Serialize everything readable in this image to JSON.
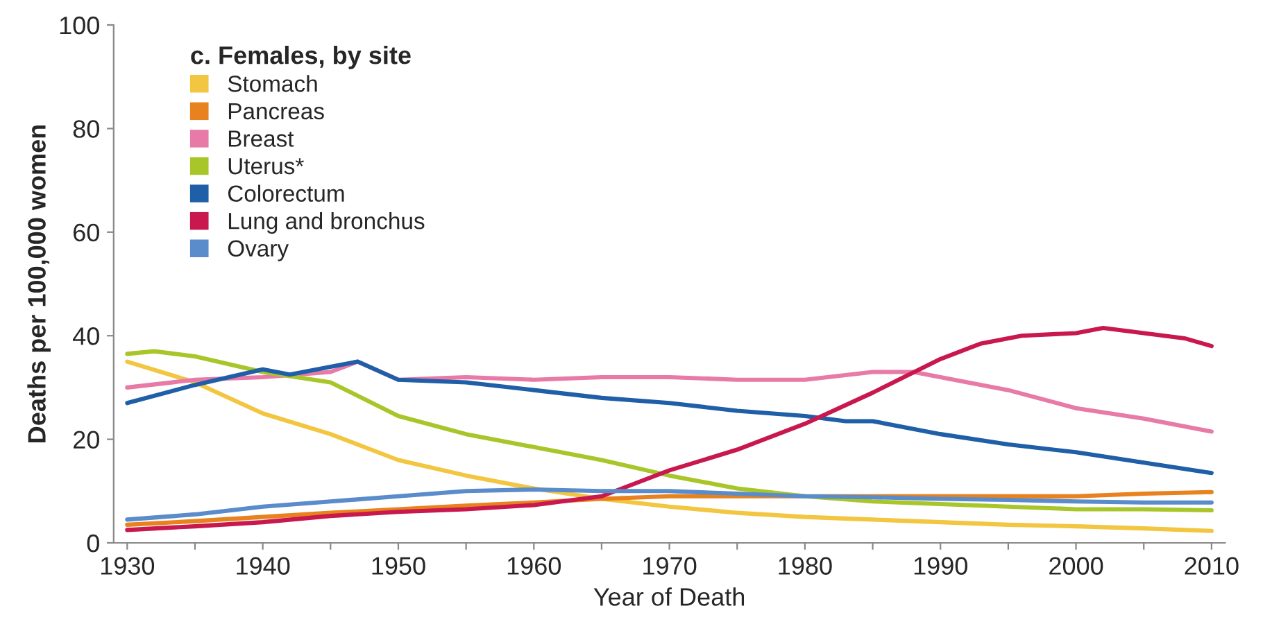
{
  "chart_data": {
    "type": "line",
    "legend_title": "c. Females, by site",
    "xlabel": "Year of Death",
    "ylabel": "Deaths per 100,000 women",
    "xlim": [
      1929,
      2011
    ],
    "ylim": [
      0,
      100
    ],
    "yticks": [
      0,
      20,
      40,
      60,
      80,
      100
    ],
    "xticks": [
      1930,
      {
        "value": 1935,
        "label": null
      },
      1940,
      {
        "value": 1945,
        "label": null
      },
      1950,
      {
        "value": 1955,
        "label": null
      },
      1960,
      {
        "value": 1965,
        "label": null
      },
      1970,
      {
        "value": 1975,
        "label": null
      },
      1980,
      {
        "value": 1985,
        "label": null
      },
      1990,
      {
        "value": 1995,
        "label": null
      },
      2000,
      {
        "value": 2005,
        "label": null
      },
      2010
    ],
    "grid": false,
    "legend": "top left",
    "marker": "none",
    "line_style": "solid",
    "series": [
      {
        "name": "Stomach",
        "color": "#f2c640",
        "x": [
          1930,
          1935,
          1940,
          1945,
          1950,
          1955,
          1960,
          1965,
          1970,
          1975,
          1980,
          1985,
          1990,
          1995,
          2000,
          2005,
          2010
        ],
        "values": [
          35,
          31,
          25,
          21,
          16,
          13,
          10.5,
          8.5,
          7,
          5.8,
          5,
          4.5,
          4,
          3.5,
          3.2,
          2.8,
          2.3
        ]
      },
      {
        "name": "Pancreas",
        "color": "#e8821e",
        "x": [
          1930,
          1935,
          1940,
          1945,
          1950,
          1955,
          1960,
          1965,
          1970,
          1975,
          1980,
          1985,
          1990,
          1995,
          2000,
          2005,
          2010
        ],
        "values": [
          3.5,
          4.2,
          5,
          5.8,
          6.5,
          7.2,
          7.8,
          8.5,
          9,
          9,
          9,
          9,
          9,
          9,
          9,
          9.5,
          9.8
        ]
      },
      {
        "name": "Breast",
        "color": "#e87aa8",
        "x": [
          1930,
          1935,
          1940,
          1945,
          1947,
          1950,
          1955,
          1960,
          1965,
          1970,
          1975,
          1980,
          1985,
          1988,
          1990,
          1995,
          2000,
          2005,
          2010
        ],
        "values": [
          30,
          31.5,
          32,
          33,
          35,
          31.5,
          32,
          31.5,
          32,
          32,
          31.5,
          31.5,
          33,
          33,
          32,
          29.5,
          26,
          24,
          21.5
        ]
      },
      {
        "name": "Uterus*",
        "color": "#a8c62a",
        "x": [
          1930,
          1932,
          1935,
          1940,
          1945,
          1950,
          1955,
          1960,
          1965,
          1970,
          1975,
          1980,
          1985,
          1990,
          1995,
          2000,
          2005,
          2010
        ],
        "values": [
          36.5,
          37,
          36,
          33,
          31,
          24.5,
          21,
          18.5,
          16,
          13,
          10.5,
          9,
          8,
          7.5,
          7,
          6.5,
          6.5,
          6.3
        ]
      },
      {
        "name": "Colorectum",
        "color": "#1f5fa8",
        "x": [
          1930,
          1935,
          1940,
          1942,
          1945,
          1947,
          1950,
          1955,
          1960,
          1965,
          1970,
          1975,
          1980,
          1983,
          1985,
          1990,
          1995,
          2000,
          2005,
          2010
        ],
        "values": [
          27,
          30.5,
          33.5,
          32.5,
          34,
          35,
          31.5,
          31,
          29.5,
          28,
          27,
          25.5,
          24.5,
          23.5,
          23.5,
          21,
          19,
          17.5,
          15.5,
          13.5
        ]
      },
      {
        "name": "Lung and bronchus",
        "color": "#c8184e",
        "x": [
          1930,
          1935,
          1940,
          1945,
          1950,
          1955,
          1960,
          1965,
          1970,
          1975,
          1980,
          1985,
          1990,
          1993,
          1996,
          2000,
          2002,
          2005,
          2008,
          2010
        ],
        "values": [
          2.5,
          3.2,
          4,
          5.2,
          6,
          6.5,
          7.3,
          9,
          14,
          18,
          23,
          29,
          35.5,
          38.5,
          40,
          40.5,
          41.5,
          40.5,
          39.5,
          38
        ]
      },
      {
        "name": "Ovary",
        "color": "#5a8ccc",
        "x": [
          1930,
          1935,
          1940,
          1945,
          1950,
          1955,
          1960,
          1965,
          1970,
          1975,
          1980,
          1985,
          1990,
          1995,
          2000,
          2005,
          2010
        ],
        "values": [
          4.5,
          5.5,
          7,
          8,
          9,
          10,
          10.3,
          10,
          10,
          9.5,
          9,
          8.8,
          8.5,
          8.3,
          8,
          7.8,
          7.8
        ]
      }
    ]
  }
}
